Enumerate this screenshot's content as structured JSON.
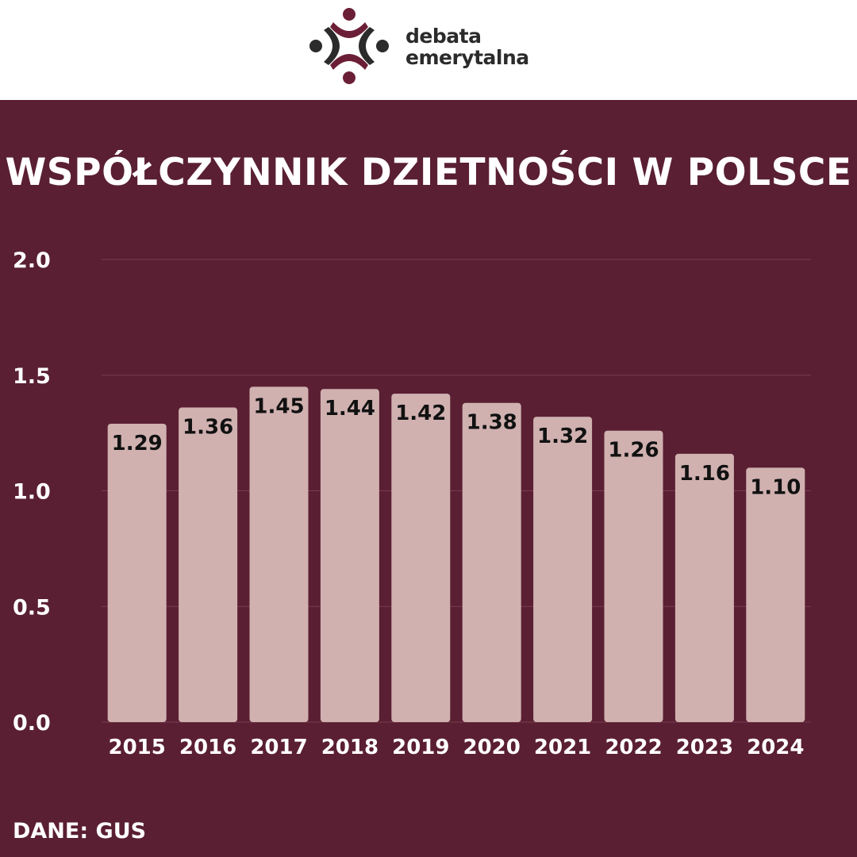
{
  "brand": {
    "line1": "debata",
    "line2": "emerytalna",
    "logo_icon": "people-circle-logo-icon"
  },
  "colors": {
    "background": "#5a1f32",
    "bar": "#d0b1b0",
    "text": "#ffffff",
    "label": "#111111",
    "grid": "#7a3c50"
  },
  "footer": {
    "source": "DANE: GUS"
  },
  "chart_data": {
    "type": "bar",
    "title": "WSPÓŁCZYNNIK DZIETNOŚCI W POLSCE",
    "categories": [
      "2015",
      "2016",
      "2017",
      "2018",
      "2019",
      "2020",
      "2021",
      "2022",
      "2023",
      "2024"
    ],
    "values": [
      1.29,
      1.36,
      1.45,
      1.44,
      1.42,
      1.38,
      1.32,
      1.26,
      1.16,
      1.1
    ],
    "value_labels": [
      "1.29",
      "1.36",
      "1.45",
      "1.44",
      "1.42",
      "1.38",
      "1.32",
      "1.26",
      "1.16",
      "1.10"
    ],
    "ylim": [
      0,
      2.0
    ],
    "yticks": [
      "0.0",
      "0.5",
      "1.0",
      "1.5",
      "2.0"
    ],
    "grid": true,
    "xlabel": "",
    "ylabel": ""
  }
}
